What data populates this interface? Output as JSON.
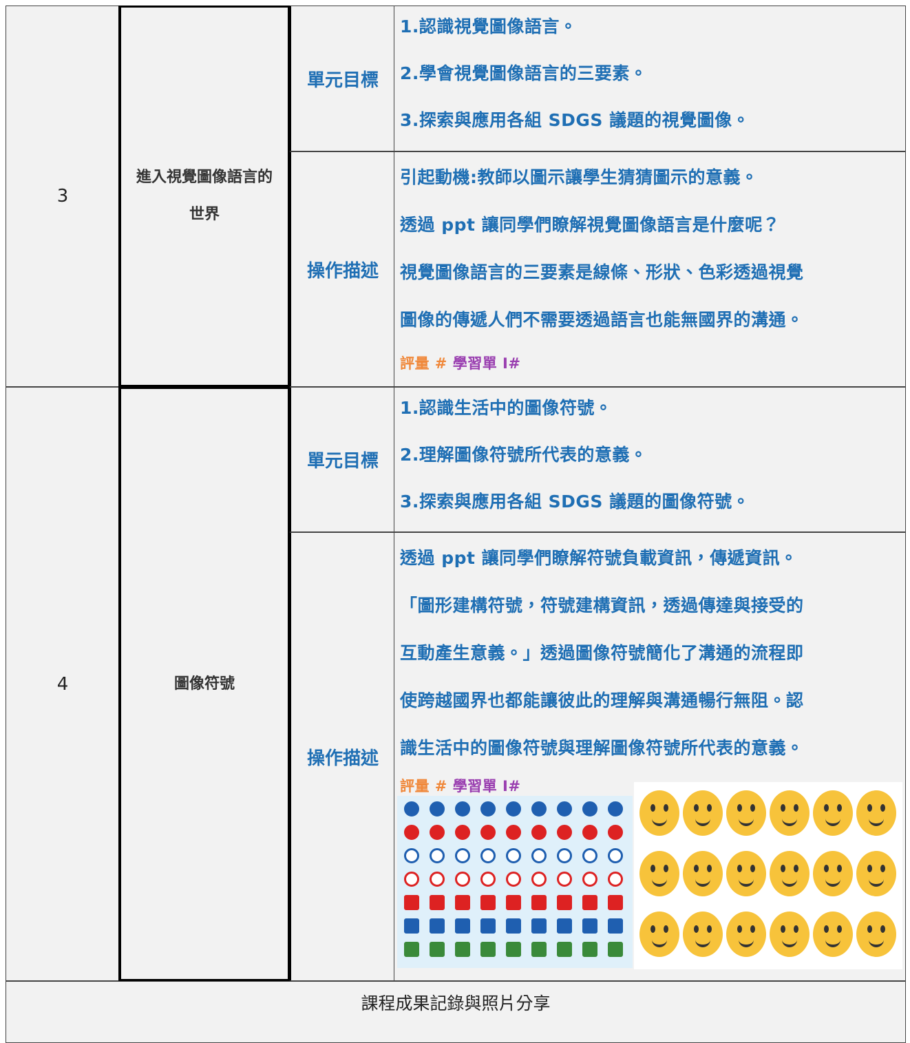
{
  "table": {
    "rows": [
      {
        "number": "3",
        "topic": "進入視覺圖像語言的世界",
        "goals_label": "單元目標",
        "goals": [
          "1.認識視覺圖像語言。",
          "2.學會視覺圖像語言的三要素。",
          "3.探索與應用各組 SDGS 議題的視覺圖像。"
        ],
        "ops_label": "操作描述",
        "ops": [
          "引起動機:教師以圖示讓學生猜猜圖示的意義。",
          "透過 ppt 讓同學們瞭解視覺圖像語言是什麼呢？",
          "視覺圖像語言的三要素是線條、形狀、色彩透過視覺",
          "圖像的傳遞人們不需要透過語言也能無國界的溝通。"
        ],
        "assessment": [
          "評量 #",
          "學習單 I#"
        ]
      },
      {
        "number": "4",
        "topic": "圖像符號",
        "goals_label": "單元目標",
        "goals": [
          "1.認識生活中的圖像符號。",
          "2.理解圖像符號所代表的意義。",
          "3.探索與應用各組 SDGS 議題的圖像符號。"
        ],
        "ops_label": "操作描述",
        "ops": [
          "透過 ppt 讓同學們瞭解符號負載資訊，傳遞資訊。",
          "「圖形建構符號，符號建構資訊，透過傳達與接受的",
          "互動產生意義。」透過圖像符號簡化了溝通的流程即",
          "使跨越國界也都能讓彼此的理解與溝通暢行無阻。認",
          "識生活中的圖像符號與理解圖像符號所代表的意義。"
        ],
        "assessment": [
          "評量 #",
          "學習單 I#"
        ]
      }
    ],
    "footer": "課程成果記錄與照片分享"
  }
}
